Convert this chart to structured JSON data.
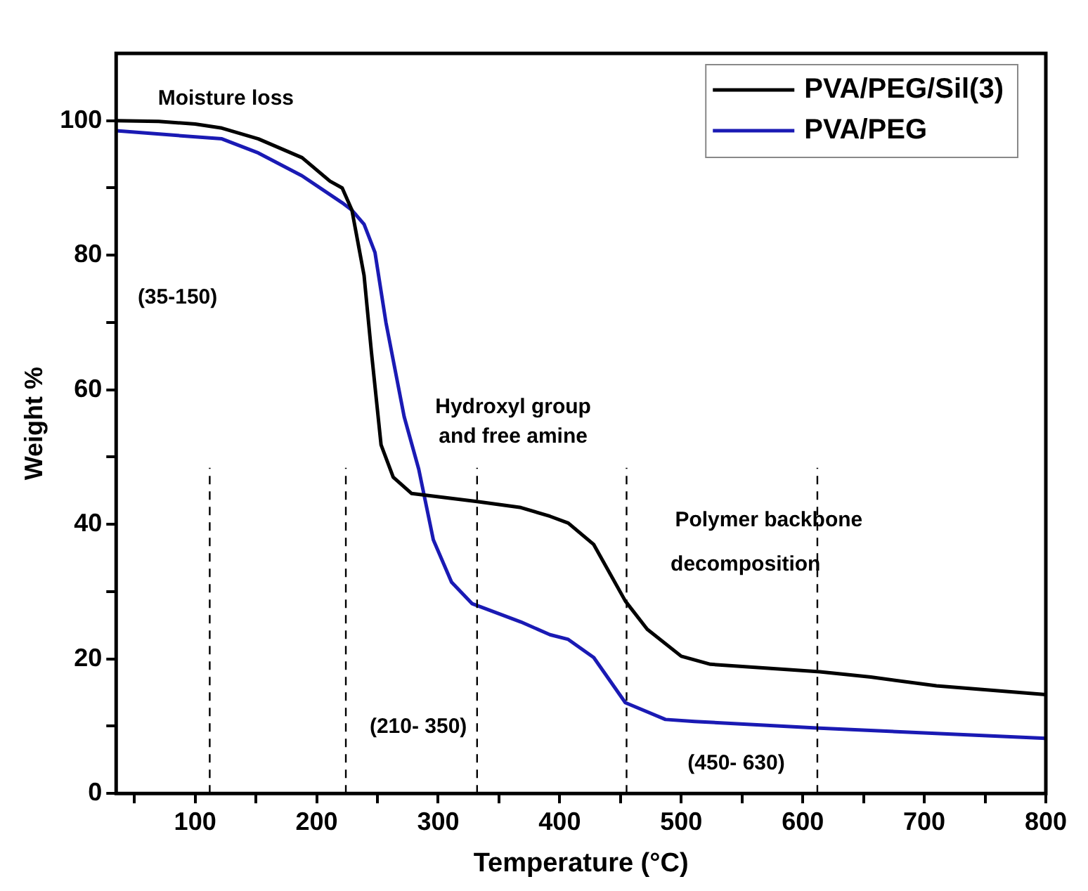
{
  "chart_data": {
    "type": "line",
    "xlabel": "Temperature (°C)",
    "ylabel": "Weight %",
    "xlim": [
      35,
      800
    ],
    "ylim": [
      0,
      110
    ],
    "xticks": [
      {
        "value": 50,
        "label": null
      },
      100,
      {
        "value": 150,
        "label": null
      },
      200,
      {
        "value": 250,
        "label": null
      },
      300,
      {
        "value": 350,
        "label": null
      },
      400,
      {
        "value": 450,
        "label": null
      },
      500,
      {
        "value": 550,
        "label": null
      },
      600,
      {
        "value": 650,
        "label": null
      },
      700,
      {
        "value": 750,
        "label": null
      },
      800
    ],
    "yticks": [
      0,
      {
        "value": 10,
        "label": null
      },
      20,
      {
        "value": 30,
        "label": null
      },
      40,
      {
        "value": 50,
        "label": null
      },
      60,
      {
        "value": 70,
        "label": null
      },
      80,
      {
        "value": 90,
        "label": null
      },
      100
    ],
    "grid": false,
    "legend": "top right",
    "marker": "none",
    "line_style": "solid",
    "series": [
      {
        "name": "PVA/PEG/Sil(3)",
        "color": "#000000",
        "x": [
          35,
          70,
          100,
          122,
          152,
          188,
          211,
          221,
          229,
          239,
          245,
          253,
          263,
          278,
          332,
          368,
          392,
          407,
          428,
          454,
          472,
          500,
          524,
          614,
          656,
          710,
          800
        ],
        "values": [
          100,
          99.9,
          99.5,
          98.9,
          97.3,
          94.5,
          91,
          90,
          86.7,
          77,
          65.7,
          51.8,
          47,
          44.6,
          43.4,
          42.5,
          41.2,
          40.2,
          37,
          28.6,
          24.4,
          20.4,
          19.2,
          18.1,
          17.3,
          16,
          14.7
        ]
      },
      {
        "name": "PVA/PEG",
        "color": "#1a1ab4",
        "x": [
          35,
          122,
          152,
          188,
          221,
          229,
          239,
          248,
          257,
          272,
          284,
          296,
          311,
          328,
          368,
          392,
          407,
          428,
          454,
          487,
          511,
          614,
          800
        ],
        "values": [
          98.5,
          97.3,
          95.2,
          91.8,
          87.8,
          86.7,
          84.6,
          80.4,
          70,
          56,
          48.2,
          37.7,
          31.4,
          28.2,
          25.5,
          23.6,
          22.9,
          20.2,
          13.5,
          11,
          10.7,
          9.7,
          8.2
        ]
      }
    ],
    "ref_lines": [
      {
        "axis": "x",
        "value": 112,
        "color": "#000000",
        "line_style": "dashed"
      },
      {
        "axis": "x",
        "value": 224,
        "color": "#000000",
        "line_style": "dashed"
      },
      {
        "axis": "x",
        "value": 332,
        "color": "#000000",
        "line_style": "dashed"
      },
      {
        "axis": "x",
        "value": 455,
        "color": "#000000",
        "line_style": "dashed"
      },
      {
        "axis": "x",
        "value": 612,
        "color": "#000000",
        "line_style": "dashed"
      }
    ],
    "annotations": [
      "Moisture loss",
      "(35-150)",
      "Hydroxyl group",
      "and free amine",
      "(210- 350)",
      "Polymer backbone",
      "decomposition",
      "(450- 630)"
    ]
  }
}
